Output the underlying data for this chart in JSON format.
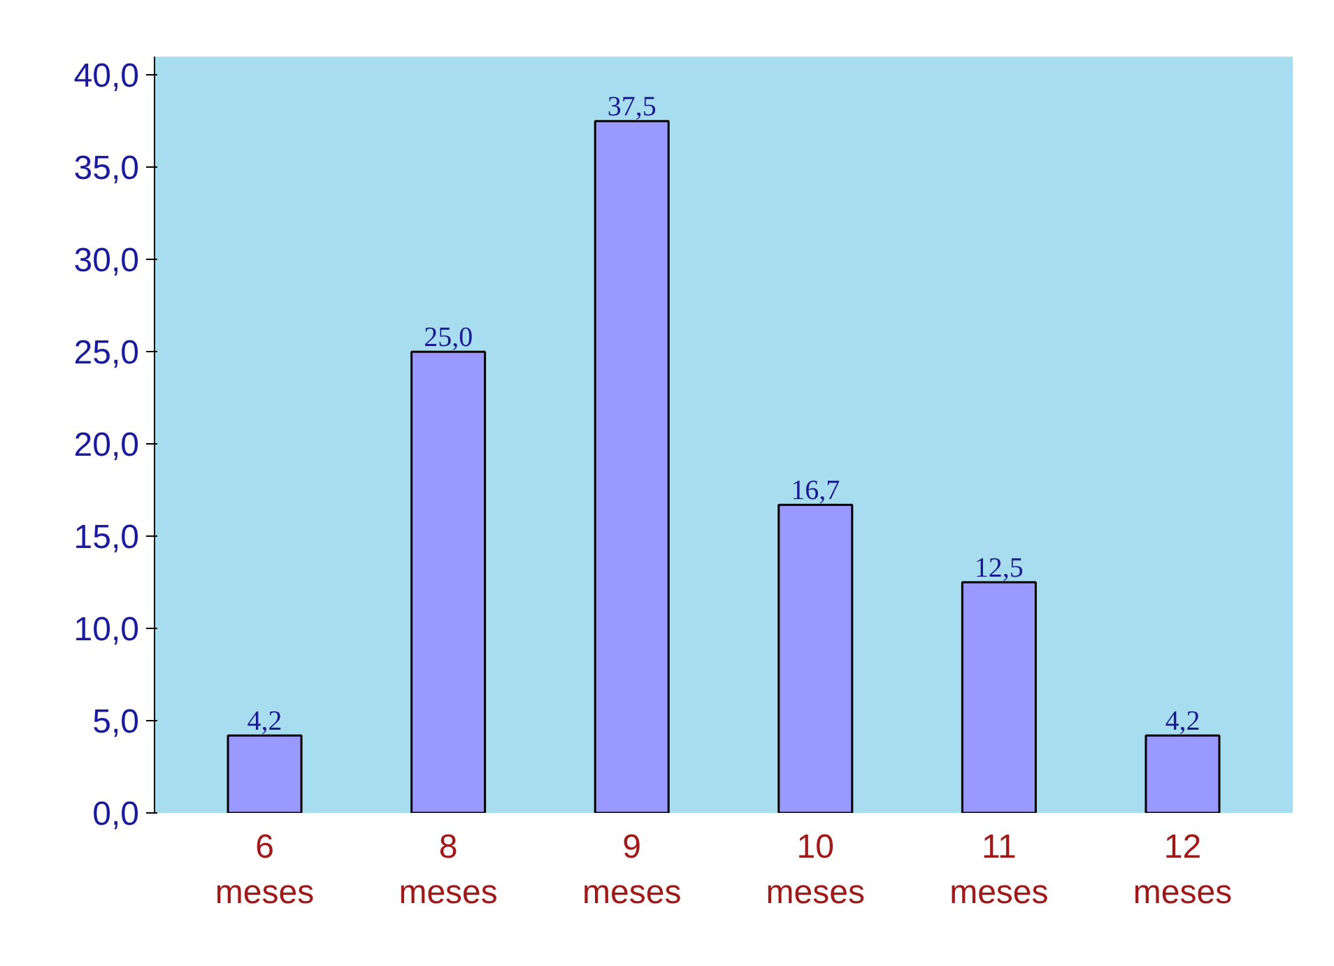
{
  "chart_data": {
    "type": "bar",
    "categories": [
      "6\nmeses",
      "8\nmeses",
      "9\nmeses",
      "10\nmeses",
      "11\nmeses",
      "12\nmeses"
    ],
    "values": [
      4.2,
      25.0,
      37.5,
      16.7,
      12.5,
      4.2
    ],
    "value_labels": [
      "4,2",
      "25,0",
      "37,5",
      "16,7",
      "12,5",
      "4,2"
    ],
    "color": "#9999ff",
    "ylim": [
      0,
      41
    ],
    "yticks": [
      {
        "value": 0,
        "label": "0,0"
      },
      {
        "value": 5,
        "label": "5,0"
      },
      {
        "value": 10,
        "label": "10,0"
      },
      {
        "value": 15,
        "label": "15,0"
      },
      {
        "value": 20,
        "label": "20,0"
      },
      {
        "value": 25,
        "label": "25,0"
      },
      {
        "value": 30,
        "label": "30,0"
      },
      {
        "value": 35,
        "label": "35,0"
      },
      {
        "value": 40,
        "label": "40,0"
      }
    ],
    "grid": false
  }
}
